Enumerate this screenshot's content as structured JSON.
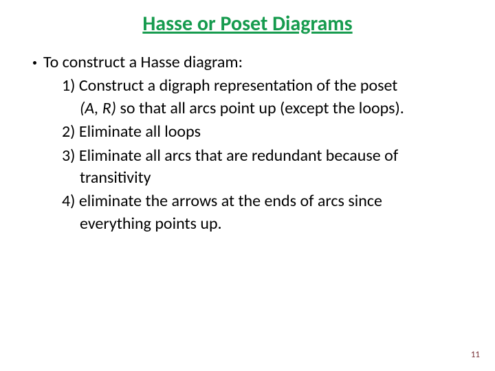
{
  "title": {
    "text": "Hasse or Poset Diagrams",
    "color": "#169b4e",
    "fontsize": 30
  },
  "body": {
    "color": "#000000",
    "fontsize": 24,
    "bullet_color": "#000000",
    "lead": "To construct a Hasse diagram:",
    "steps": [
      {
        "head": "1) Construct a digraph representation of the poset",
        "cont_italic": "(A, R)",
        "cont_rest": " so that all arcs point up (except the loops)."
      },
      {
        "head": "2) Eliminate all loops"
      },
      {
        "head": "3) Eliminate all arcs that are redundant because of",
        "cont": "transitivity"
      },
      {
        "head": "4) eliminate the arrows at the ends of arcs since",
        "cont": "everything points up."
      }
    ]
  },
  "pagenum": {
    "text": "11",
    "color": "#7a343a",
    "fontsize": 13
  },
  "background": "#ffffff"
}
